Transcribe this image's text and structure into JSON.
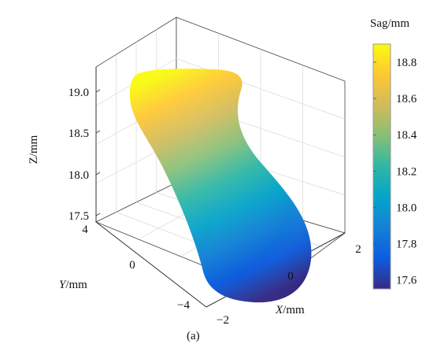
{
  "chart_data": {
    "type": "surface3d",
    "panel_label": "(a)",
    "x_axis": {
      "label_var": "X",
      "label_unit": "/mm",
      "ticks": [
        "−2",
        "0",
        "2"
      ]
    },
    "y_axis": {
      "label_var": "Y",
      "label_unit": "/mm",
      "ticks": [
        "−4",
        "0",
        "4"
      ]
    },
    "z_axis": {
      "label": "Z/mm",
      "ticks": [
        "17.5",
        "18.0",
        "18.5",
        "19.0"
      ]
    },
    "colorbar": {
      "title": "Sag/mm",
      "ticks": [
        "17.6",
        "17.8",
        "18.0",
        "18.2",
        "18.4",
        "18.6",
        "18.8"
      ],
      "range": [
        17.55,
        18.9
      ],
      "colors": [
        "#352a87",
        "#0f5cdd",
        "#1481d6",
        "#06a4ca",
        "#2eb7a4",
        "#87bf77",
        "#d1bb59",
        "#fec832",
        "#f9fb0e"
      ]
    },
    "surface": {
      "x_range": [
        -2,
        2
      ],
      "y_range": [
        -4,
        4
      ],
      "z_range": [
        17.55,
        18.85
      ],
      "z_low_corner": "x=2, y=-4",
      "z_high_corner": "x=-2, y=4"
    },
    "grid": true
  }
}
